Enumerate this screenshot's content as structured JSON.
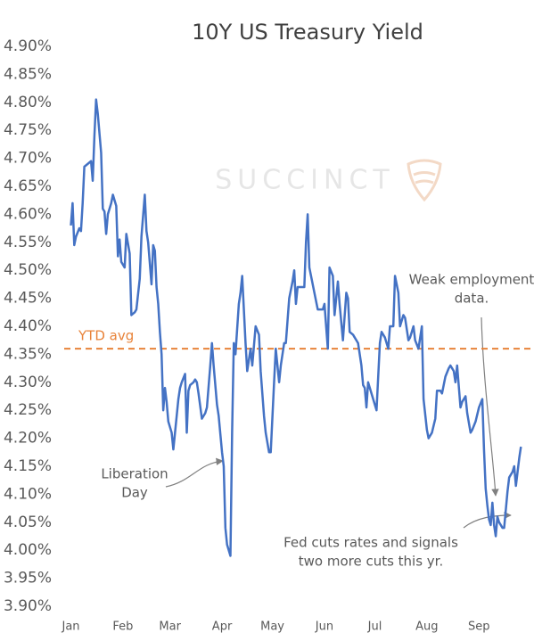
{
  "chart_data": {
    "type": "line",
    "title": "10Y US Treasury Yield",
    "watermark": "SUCCINCT",
    "color": "#4472c4",
    "grid": false,
    "xlim": [
      -3,
      272
    ],
    "xticks": [
      {
        "value": 1,
        "label": "Jan"
      },
      {
        "value": 32,
        "label": "Feb"
      },
      {
        "value": 60,
        "label": "Mar"
      },
      {
        "value": 91,
        "label": "Apr"
      },
      {
        "value": 121,
        "label": "May"
      },
      {
        "value": 152,
        "label": "Jun"
      },
      {
        "value": 182,
        "label": "Jul"
      },
      {
        "value": 213,
        "label": "Aug"
      },
      {
        "value": 244,
        "label": "Sep"
      }
    ],
    "ylim": [
      3.9,
      4.9
    ],
    "yticks": [
      {
        "value": 3.9,
        "label": "3.90%"
      },
      {
        "value": 3.95,
        "label": "3.95%"
      },
      {
        "value": 4.0,
        "label": "4.00%"
      },
      {
        "value": 4.05,
        "label": "4.05%"
      },
      {
        "value": 4.1,
        "label": "4.10%"
      },
      {
        "value": 4.15,
        "label": "4.15%"
      },
      {
        "value": 4.2,
        "label": "4.20%"
      },
      {
        "value": 4.25,
        "label": "4.25%"
      },
      {
        "value": 4.3,
        "label": "4.30%"
      },
      {
        "value": 4.35,
        "label": "4.35%"
      },
      {
        "value": 4.4,
        "label": "4.40%"
      },
      {
        "value": 4.45,
        "label": "4.45%"
      },
      {
        "value": 4.5,
        "label": "4.50%"
      },
      {
        "value": 4.55,
        "label": "4.55%"
      },
      {
        "value": 4.6,
        "label": "4.60%"
      },
      {
        "value": 4.65,
        "label": "4.65%"
      },
      {
        "value": 4.7,
        "label": "4.70%"
      },
      {
        "value": 4.75,
        "label": "4.75%"
      },
      {
        "value": 4.8,
        "label": "4.80%"
      },
      {
        "value": 4.85,
        "label": "4.85%"
      },
      {
        "value": 4.9,
        "label": "4.90%"
      }
    ],
    "reference_line": {
      "value": 4.36,
      "label": "YTD avg",
      "color": "#e8833a"
    },
    "annotations": [
      {
        "lines": [
          "Liberation",
          "Day"
        ]
      },
      {
        "lines": [
          "Weak employment",
          "data."
        ]
      },
      {
        "lines": [
          "Fed cuts rates and signals",
          "two more cuts this yr."
        ]
      }
    ],
    "x": [
      1,
      2,
      3,
      4,
      6,
      7,
      8,
      9,
      11,
      13,
      14,
      15,
      16,
      17,
      19,
      20,
      21,
      22,
      23,
      25,
      26,
      28,
      29,
      30,
      31,
      33,
      34,
      36,
      37,
      39,
      40,
      42,
      43,
      45,
      46,
      47,
      49,
      50,
      51,
      52,
      53,
      54,
      55,
      56,
      57,
      58,
      59,
      61,
      62,
      63,
      65,
      66,
      67,
      69,
      70,
      71,
      72,
      74,
      75,
      76,
      77,
      79,
      81,
      82,
      84,
      85,
      86,
      88,
      89,
      91,
      92,
      93,
      94,
      96,
      97,
      98,
      99,
      101,
      102,
      103,
      105,
      106,
      108,
      109,
      111,
      113,
      114,
      116,
      117,
      119,
      120,
      122,
      123,
      125,
      126,
      128,
      129,
      131,
      133,
      134,
      135,
      136,
      138,
      140,
      141,
      142,
      143,
      144,
      146,
      148,
      149,
      151,
      152,
      154,
      155,
      157,
      158,
      160,
      161,
      163,
      165,
      166,
      167,
      169,
      170,
      172,
      174,
      175,
      176,
      177,
      178,
      180,
      182,
      183,
      185,
      186,
      188,
      190,
      191,
      193,
      194,
      196,
      197,
      199,
      200,
      202,
      203,
      205,
      206,
      208,
      210,
      211,
      213,
      214,
      216,
      218,
      219,
      221,
      222,
      224,
      226,
      227,
      229,
      230,
      231,
      233,
      234,
      236,
      237,
      239,
      240,
      242,
      244,
      246,
      247,
      248,
      249,
      250,
      251,
      252,
      253,
      254,
      255,
      256,
      258,
      259,
      261,
      262,
      264,
      265,
      266,
      268,
      269
    ],
    "values": [
      4.58,
      4.62,
      4.545,
      4.56,
      4.575,
      4.57,
      4.62,
      4.685,
      4.69,
      4.695,
      4.66,
      4.74,
      4.805,
      4.78,
      4.71,
      4.61,
      4.605,
      4.565,
      4.6,
      4.62,
      4.635,
      4.615,
      4.525,
      4.555,
      4.515,
      4.505,
      4.565,
      4.53,
      4.42,
      4.425,
      4.43,
      4.485,
      4.56,
      4.635,
      4.57,
      4.55,
      4.475,
      4.545,
      4.535,
      4.47,
      4.44,
      4.39,
      4.35,
      4.25,
      4.29,
      4.265,
      4.23,
      4.21,
      4.18,
      4.21,
      4.27,
      4.29,
      4.3,
      4.315,
      4.21,
      4.285,
      4.295,
      4.3,
      4.305,
      4.3,
      4.28,
      4.235,
      4.245,
      4.255,
      4.33,
      4.37,
      4.33,
      4.26,
      4.24,
      4.175,
      4.15,
      4.04,
      4.01,
      3.99,
      4.21,
      4.37,
      4.35,
      4.44,
      4.46,
      4.49,
      4.37,
      4.32,
      4.36,
      4.33,
      4.4,
      4.385,
      4.32,
      4.24,
      4.21,
      4.175,
      4.175,
      4.3,
      4.36,
      4.3,
      4.33,
      4.37,
      4.37,
      4.45,
      4.48,
      4.5,
      4.44,
      4.47,
      4.47,
      4.47,
      4.55,
      4.6,
      4.505,
      4.49,
      4.46,
      4.43,
      4.43,
      4.43,
      4.44,
      4.36,
      4.505,
      4.49,
      4.42,
      4.48,
      4.44,
      4.375,
      4.46,
      4.45,
      4.39,
      4.385,
      4.38,
      4.37,
      4.33,
      4.295,
      4.29,
      4.255,
      4.3,
      4.28,
      4.26,
      4.25,
      4.37,
      4.39,
      4.38,
      4.36,
      4.4,
      4.4,
      4.49,
      4.46,
      4.4,
      4.42,
      4.415,
      4.375,
      4.38,
      4.4,
      4.375,
      4.36,
      4.4,
      4.27,
      4.215,
      4.2,
      4.21,
      4.235,
      4.285,
      4.285,
      4.28,
      4.31,
      4.325,
      4.33,
      4.32,
      4.3,
      4.33,
      4.255,
      4.265,
      4.275,
      4.245,
      4.21,
      4.215,
      4.23,
      4.255,
      4.27,
      4.18,
      4.11,
      4.08,
      4.055,
      4.045,
      4.085,
      4.045,
      4.025,
      4.06,
      4.05,
      4.04,
      4.04,
      4.105,
      4.13,
      4.14,
      4.15,
      4.115,
      4.165,
      4.185
    ]
  }
}
